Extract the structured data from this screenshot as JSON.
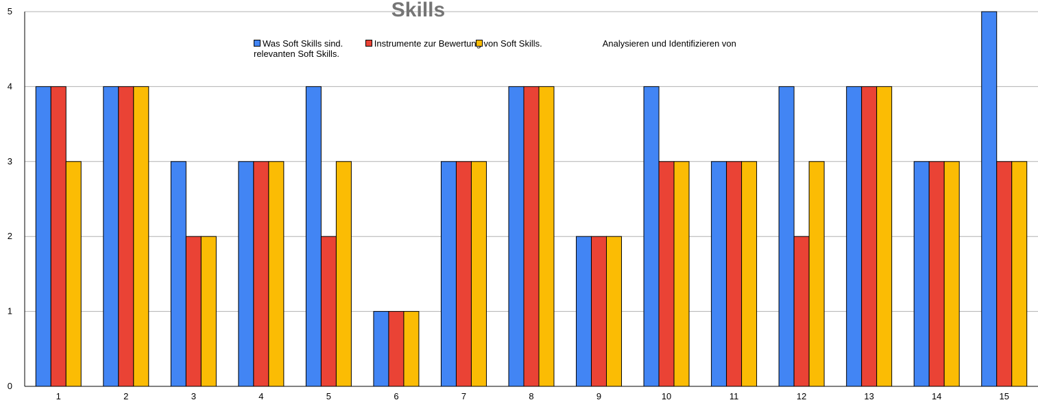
{
  "chart_data": {
    "type": "bar",
    "title": "Skills",
    "categories": [
      "1",
      "2",
      "3",
      "4",
      "5",
      "6",
      "7",
      "8",
      "9",
      "10",
      "11",
      "12",
      "13",
      "14",
      "15"
    ],
    "ylim": [
      0,
      5
    ],
    "yticks": [
      "0",
      "1",
      "2",
      "3",
      "4",
      "5"
    ],
    "grid": true,
    "legend_position": "top",
    "series": [
      {
        "name": "Was Soft Skills sind.",
        "color": "#4285f4",
        "values": [
          4,
          4,
          3,
          3,
          4,
          1,
          3,
          4,
          2,
          4,
          3,
          4,
          4,
          3,
          5
        ]
      },
      {
        "name": "Instrumente zur Bewertung von Soft Skills.",
        "color": "#ea4335",
        "values": [
          4,
          4,
          2,
          3,
          2,
          1,
          3,
          4,
          2,
          3,
          3,
          2,
          4,
          3,
          3
        ]
      },
      {
        "name": "Analysieren und Identifizieren von relevanten Soft Skills.",
        "color": "#fbbc04",
        "values": [
          3,
          4,
          2,
          3,
          3,
          1,
          3,
          4,
          2,
          3,
          3,
          3,
          4,
          3,
          3
        ]
      }
    ]
  }
}
